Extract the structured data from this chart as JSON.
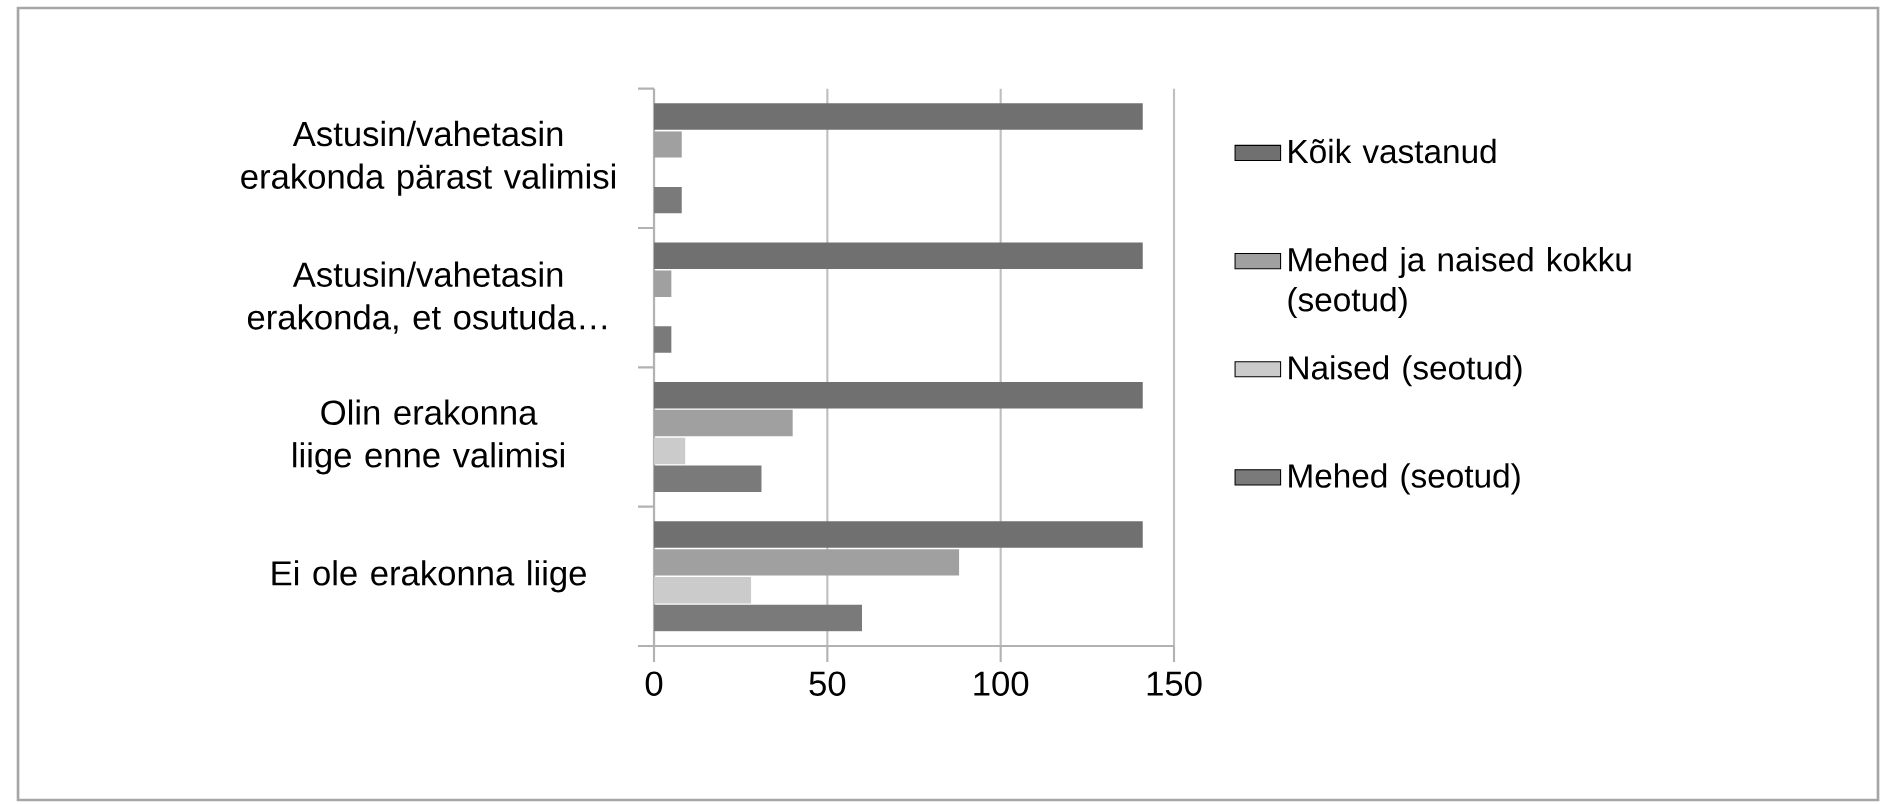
{
  "chart_data": {
    "type": "bar",
    "orientation": "horizontal",
    "categories": [
      "Astusin/vahetasin erakonda pärast valimisi",
      "Astusin/vahetasin erakonda, et osutuda…",
      "Olin erakonna liige enne valimisi",
      "Ei ole erakonna liige"
    ],
    "series": [
      {
        "name": "Kõik vastanud",
        "color": "#707070",
        "values": [
          141,
          141,
          141,
          141
        ]
      },
      {
        "name": "Mehed ja naised kokku (seotud)",
        "color": "#a0a0a0",
        "values": [
          8,
          5,
          40,
          88
        ]
      },
      {
        "name": "Naised (seotud)",
        "color": "#cbcbcb",
        "values": [
          0,
          0,
          9,
          28
        ]
      },
      {
        "name": "Mehed (seotud)",
        "color": "#7a7a7a",
        "values": [
          8,
          5,
          31,
          60
        ]
      }
    ],
    "xlim": [
      0,
      150
    ],
    "xticks": [
      0,
      50,
      100,
      150
    ],
    "grid": "x",
    "legend": "right"
  }
}
